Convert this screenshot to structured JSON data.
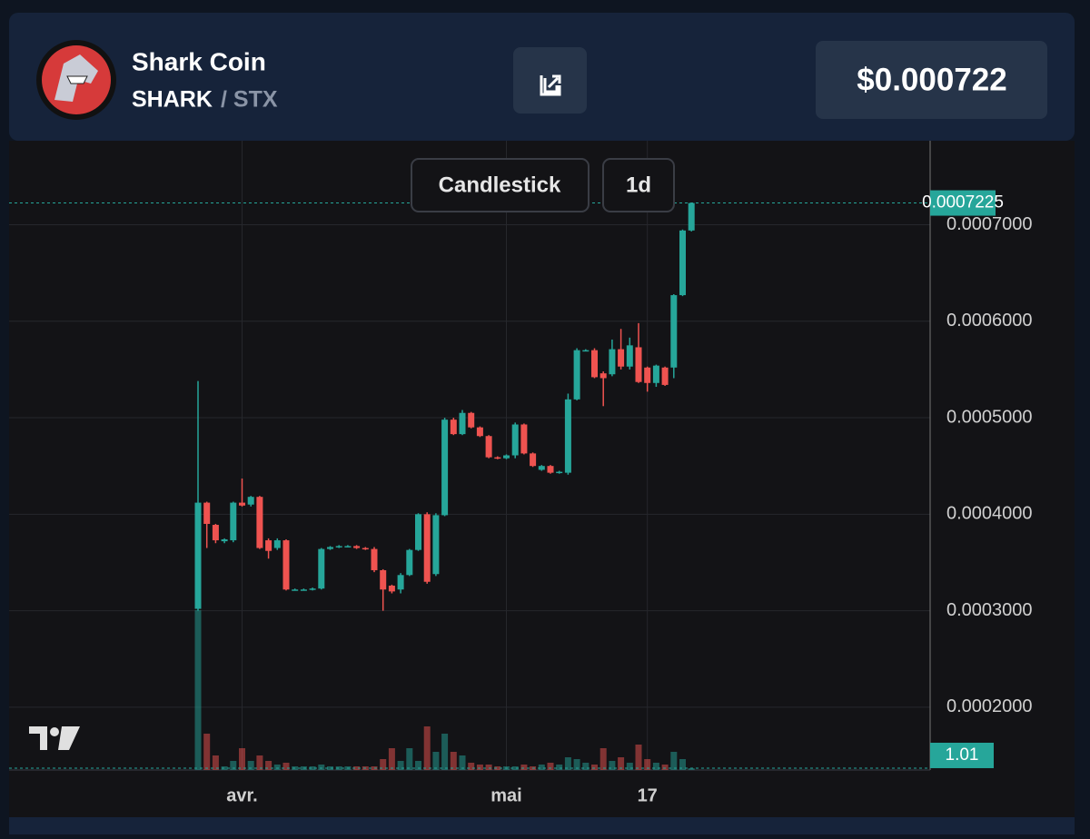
{
  "header": {
    "name": "Shark Coin",
    "symbol": "SHARK",
    "quote": "/ STX",
    "price": "$0.000722"
  },
  "toolbar": {
    "chart_type": "Candlestick",
    "interval": "1d"
  },
  "chart_data": {
    "type": "candlestick",
    "categories": [
      null,
      null,
      null,
      null,
      null,
      "avr.",
      null,
      null,
      null,
      null,
      null,
      null,
      null,
      null,
      null,
      null,
      null,
      null,
      null,
      null,
      null,
      null,
      null,
      null,
      null,
      null,
      null,
      null,
      null,
      null,
      null,
      null,
      null,
      null,
      null,
      "mai",
      null,
      null,
      null,
      null,
      null,
      null,
      null,
      null,
      null,
      null,
      null,
      null,
      null,
      null,
      null,
      "17",
      null,
      null,
      null,
      null,
      null
    ],
    "open": [
      0.000302,
      0.000412,
      0.000389,
      0.000372,
      0.000373,
      0.000412,
      0.00041,
      0.000418,
      0.000373,
      0.000365,
      0.000373,
      0.000322,
      0.000322,
      0.000322,
      0.000323,
      0.000364,
      0.000366,
      0.000367,
      0.000367,
      0.000365,
      0.000364,
      0.000342,
      0.000326,
      0.000322,
      0.000337,
      0.000363,
      0.0004,
      0.000338,
      0.000399,
      0.000498,
      0.000483,
      0.000505,
      0.00049,
      0.000481,
      0.000459,
      0.000458,
      0.000461,
      0.000493,
      0.000463,
      0.000446,
      0.00045,
      0.000443,
      0.000443,
      0.000519,
      0.00057,
      0.00057,
      0.000546,
      0.000545,
      0.000571,
      0.000553,
      0.000573,
      0.000552,
      0.000536,
      0.000552,
      0.000552,
      0.000627,
      0.000694
    ],
    "high": [
      0.000538,
      0.000413,
      0.00039,
      0.000375,
      0.000413,
      0.000437,
      0.000419,
      0.000419,
      0.000375,
      0.000375,
      0.000374,
      0.000323,
      0.000323,
      0.000324,
      0.000365,
      0.000367,
      0.000368,
      0.000368,
      0.000368,
      0.000366,
      0.000366,
      0.000343,
      0.000327,
      0.000339,
      0.000364,
      0.000401,
      0.000402,
      0.000401,
      0.0005,
      0.0005,
      0.000508,
      0.000506,
      0.000491,
      0.000482,
      0.00046,
      0.000462,
      0.000495,
      0.000494,
      0.000464,
      0.000451,
      0.000451,
      0.000445,
      0.000525,
      0.000572,
      0.000571,
      0.000572,
      0.000548,
      0.000581,
      0.000592,
      0.000583,
      0.000598,
      0.000553,
      0.000555,
      0.000553,
      0.000628,
      0.000695,
      0.0007225
    ],
    "low": [
      0.0003,
      0.000365,
      0.00037,
      0.00037,
      0.000371,
      0.000408,
      0.000408,
      0.000364,
      0.000354,
      0.000363,
      0.000321,
      0.000321,
      0.000321,
      0.000321,
      0.000322,
      0.000363,
      0.000365,
      0.000366,
      0.000364,
      0.000363,
      0.00034,
      0.0003,
      0.000318,
      0.000318,
      0.000336,
      0.000362,
      0.000328,
      0.000336,
      0.000398,
      0.000482,
      0.000482,
      0.000489,
      0.00048,
      0.000458,
      0.000457,
      0.000457,
      0.000458,
      0.000462,
      0.000449,
      0.000445,
      0.000442,
      0.000442,
      0.000441,
      0.000518,
      0.000569,
      0.000541,
      0.000512,
      0.000543,
      0.00055,
      0.00055,
      0.000536,
      0.000527,
      0.000532,
      0.000533,
      0.000541,
      0.000626,
      0.000693
    ],
    "close": [
      0.000412,
      0.00039,
      0.000373,
      0.000374,
      0.000412,
      0.000409,
      0.000418,
      0.000365,
      0.000362,
      0.000373,
      0.000322,
      0.000322,
      0.000322,
      0.000323,
      0.000364,
      0.000366,
      0.000367,
      0.000367,
      0.000365,
      0.000364,
      0.000342,
      0.000322,
      0.00032,
      0.000337,
      0.000363,
      0.0004,
      0.00033,
      0.000399,
      0.000498,
      0.000483,
      0.000505,
      0.00049,
      0.000481,
      0.000459,
      0.000458,
      0.000461,
      0.000493,
      0.000463,
      0.00045,
      0.00045,
      0.000443,
      0.000444,
      0.000519,
      0.00057,
      0.00057,
      0.000542,
      0.000541,
      0.000571,
      0.000553,
      0.000575,
      0.000537,
      0.000536,
      0.000554,
      0.000534,
      0.000627,
      0.000694,
      0.0007225
    ],
    "volumes": [
      88,
      20,
      8,
      2,
      5,
      12,
      5,
      8,
      5,
      3,
      4,
      2,
      2,
      2,
      3,
      2,
      2,
      2,
      2,
      2,
      2,
      6,
      12,
      5,
      12,
      5,
      24,
      10,
      20,
      10,
      8,
      4,
      3,
      3,
      2,
      2,
      2,
      3,
      2,
      3,
      4,
      3,
      7,
      6,
      4,
      3,
      12,
      5,
      7,
      4,
      14,
      6,
      4,
      3,
      10,
      6,
      1.01
    ],
    "ylim": [
      0.000135,
      0.000787
    ],
    "yticks": [
      {
        "value": 0.0002,
        "label": "0.0002000"
      },
      {
        "value": 0.0003,
        "label": "0.0003000"
      },
      {
        "value": 0.0004,
        "label": "0.0004000"
      },
      {
        "value": 0.0005,
        "label": "0.0005000"
      },
      {
        "value": 0.0006,
        "label": "0.0006000"
      },
      {
        "value": 0.0007,
        "label": "0.0007000"
      }
    ],
    "vlim": [
      0,
      346.5
    ],
    "grid": true,
    "up_color": "#26a69a",
    "down_color": "#ef5350"
  }
}
